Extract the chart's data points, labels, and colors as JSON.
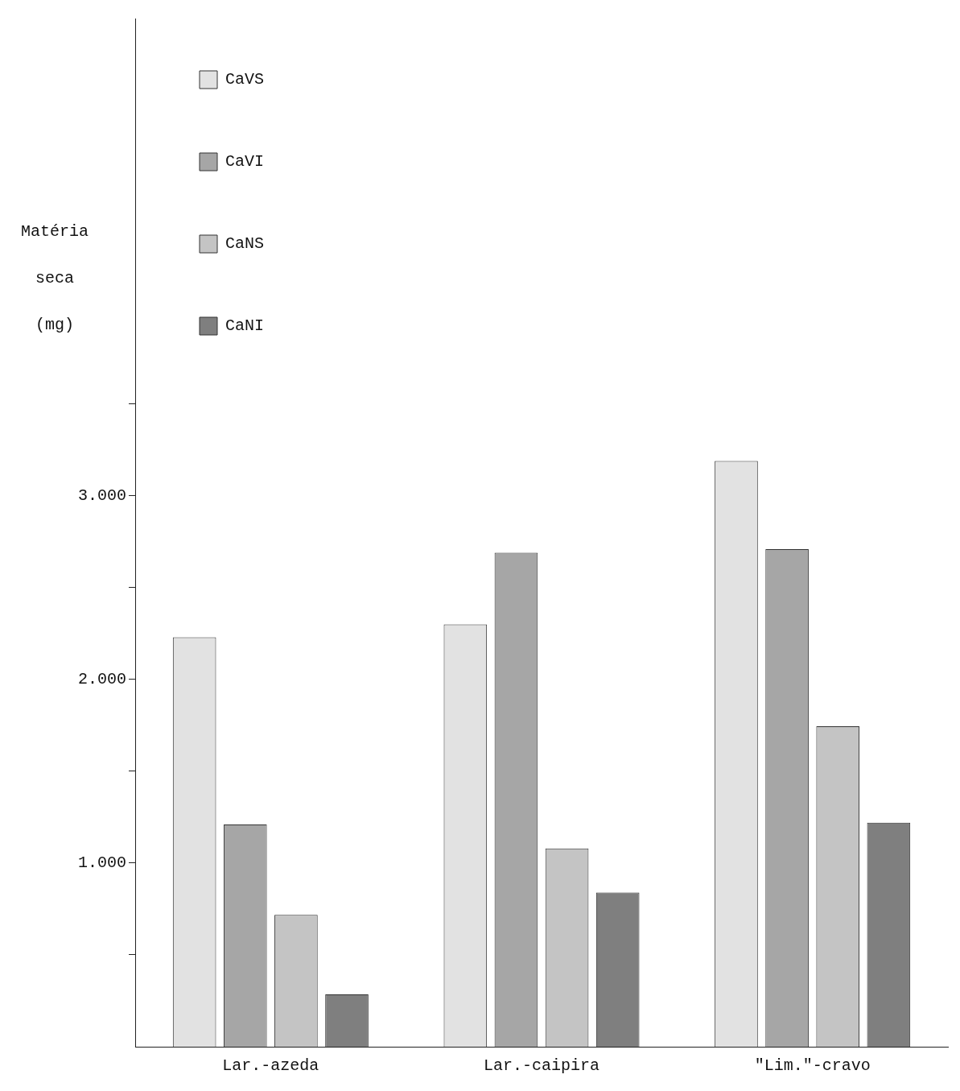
{
  "chart_data": {
    "type": "bar",
    "ylabel": "Matéria seca (mg)",
    "categories": [
      "Lar.-azeda",
      "Lar.-caipira",
      "\"Lim.\"-cravo"
    ],
    "series": [
      {
        "name": "CaVS",
        "color": "#e2e2e2",
        "values": [
          2230,
          2300,
          3190
        ]
      },
      {
        "name": "CaVI",
        "color": "#a6a6a6",
        "values": [
          1210,
          2690,
          2710
        ]
      },
      {
        "name": "CaNS",
        "color": "#c4c4c4",
        "values": [
          718,
          1080,
          1745
        ]
      },
      {
        "name": "CaNI",
        "color": "#7f7f7f",
        "values": [
          285,
          840,
          1220
        ]
      }
    ],
    "ylim": [
      0,
      5600
    ],
    "yticks": [
      {
        "value": 500,
        "label": null
      },
      {
        "value": 1000,
        "label": "1.000"
      },
      {
        "value": 1500,
        "label": null
      },
      {
        "value": 2000,
        "label": "2.000"
      },
      {
        "value": 2500,
        "label": null
      },
      {
        "value": 3000,
        "label": "3.000"
      },
      {
        "value": 3500,
        "label": null
      }
    ],
    "grid": false,
    "legend": "top left"
  }
}
